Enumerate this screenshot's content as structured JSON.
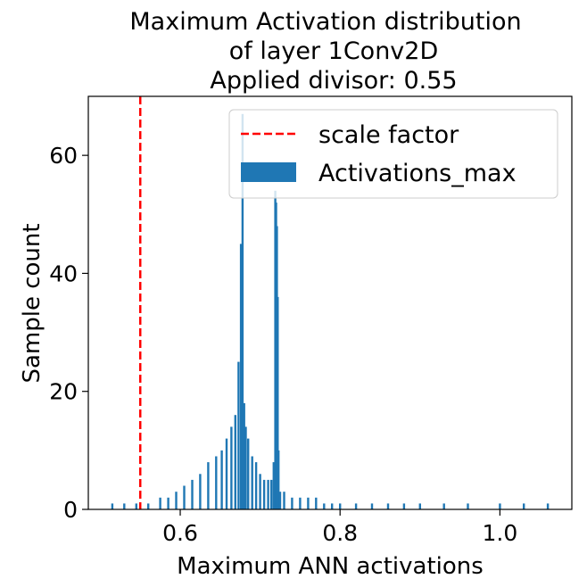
{
  "chart_data": {
    "type": "bar",
    "title_lines": [
      "Maximum Activation distribution",
      "of layer 1Conv2D",
      "Applied divisor: 0.55"
    ],
    "xlabel": "Maximum ANN activations",
    "ylabel": "Sample count",
    "xlim": [
      0.485,
      1.09
    ],
    "ylim": [
      0,
      70
    ],
    "x_ticks": [
      0.6,
      0.8,
      1.0
    ],
    "x_tick_labels": [
      "0.6",
      "0.8",
      "1.0"
    ],
    "y_ticks": [
      0,
      20,
      40,
      60
    ],
    "y_tick_labels": [
      "0",
      "20",
      "40",
      "60"
    ],
    "grid": false,
    "legend_position": "upper-right",
    "scale_factor": {
      "name": "scale factor",
      "x": 0.55,
      "color": "#ff0000",
      "style": "dashed"
    },
    "histogram": {
      "name": "Activations_max",
      "color": "#1f77b4",
      "x": [
        0.515,
        0.53,
        0.545,
        0.56,
        0.575,
        0.585,
        0.595,
        0.605,
        0.615,
        0.625,
        0.635,
        0.645,
        0.652,
        0.658,
        0.664,
        0.669,
        0.673,
        0.676,
        0.678,
        0.68,
        0.682,
        0.685,
        0.69,
        0.695,
        0.7,
        0.705,
        0.71,
        0.714,
        0.717,
        0.719,
        0.72,
        0.721,
        0.722,
        0.723,
        0.725,
        0.73,
        0.74,
        0.75,
        0.76,
        0.77,
        0.78,
        0.79,
        0.8,
        0.82,
        0.84,
        0.86,
        0.88,
        0.9,
        0.93,
        0.96,
        1.0,
        1.03,
        1.06
      ],
      "values": [
        1,
        1,
        1,
        1,
        2,
        2,
        3,
        4,
        5,
        6,
        8,
        9,
        10,
        12,
        14,
        16,
        25,
        45,
        67,
        18,
        14,
        12,
        9,
        8,
        6,
        5,
        5,
        5,
        8,
        54,
        52,
        48,
        36,
        10,
        3,
        3,
        2,
        2,
        2,
        2,
        1,
        1,
        1,
        1,
        1,
        1,
        1,
        1,
        1,
        1,
        1,
        1,
        1
      ]
    }
  }
}
